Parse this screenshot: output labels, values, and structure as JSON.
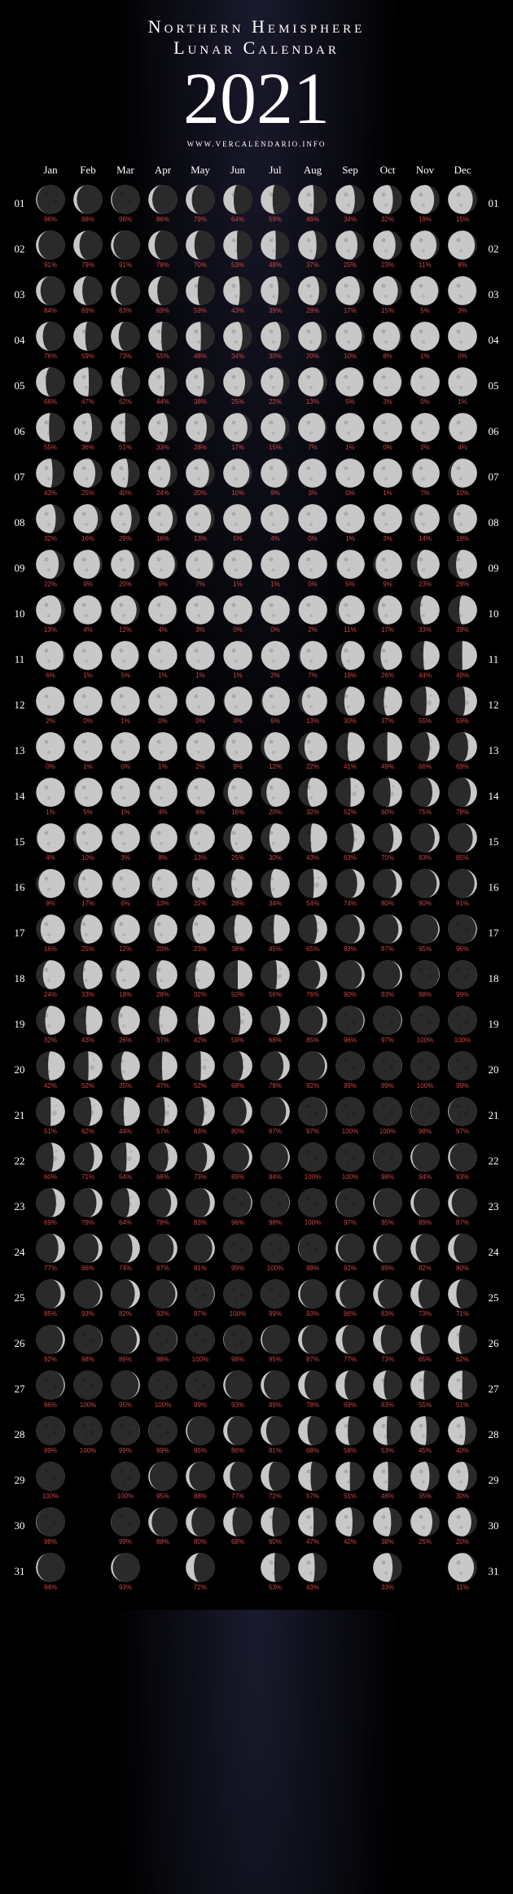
{
  "header": {
    "line1": "Northern Hemisphere",
    "line2": "Lunar Calendar",
    "year": "2021",
    "url": "WWW.VERCALENDARIO.INFO"
  },
  "months": [
    "Jan",
    "Feb",
    "Mar",
    "Apr",
    "May",
    "Jun",
    "Jul",
    "Aug",
    "Sep",
    "Oct",
    "Nov",
    "Dec"
  ],
  "days": [
    "01",
    "02",
    "03",
    "04",
    "05",
    "06",
    "07",
    "08",
    "09",
    "10",
    "11",
    "12",
    "13",
    "14",
    "15",
    "16",
    "17",
    "18",
    "19",
    "20",
    "21",
    "22",
    "23",
    "24",
    "25",
    "26",
    "27",
    "28",
    "29",
    "30",
    "31"
  ],
  "colors": {
    "bg": "#000",
    "text": "#fff",
    "pct": "#cc4444",
    "moonLight": "#c8c8c8",
    "moonDark": "#2a2a2a",
    "moonShade": "#1a1a1a"
  },
  "data": [
    [
      [
        96,
        -1
      ],
      [
        88,
        -1
      ],
      [
        96,
        -1
      ],
      [
        86,
        -1
      ],
      [
        79,
        -1
      ],
      [
        64,
        -1
      ],
      [
        59,
        -1
      ],
      [
        46,
        -1
      ],
      [
        34,
        -1
      ],
      [
        32,
        -1
      ],
      [
        19,
        -1
      ],
      [
        15,
        -1
      ]
    ],
    [
      [
        91,
        -1
      ],
      [
        79,
        -1
      ],
      [
        91,
        -1
      ],
      [
        78,
        -1
      ],
      [
        70,
        -1
      ],
      [
        53,
        -1
      ],
      [
        48,
        -1
      ],
      [
        37,
        -1
      ],
      [
        25,
        -1
      ],
      [
        23,
        -1
      ],
      [
        11,
        -1
      ],
      [
        8,
        -1
      ]
    ],
    [
      [
        84,
        -1
      ],
      [
        69,
        -1
      ],
      [
        83,
        -1
      ],
      [
        69,
        -1
      ],
      [
        59,
        -1
      ],
      [
        43,
        -1
      ],
      [
        39,
        -1
      ],
      [
        28,
        -1
      ],
      [
        17,
        -1
      ],
      [
        15,
        -1
      ],
      [
        5,
        -1
      ],
      [
        3,
        -1
      ]
    ],
    [
      [
        76,
        -1
      ],
      [
        59,
        -1
      ],
      [
        73,
        -1
      ],
      [
        55,
        -1
      ],
      [
        48,
        -1
      ],
      [
        34,
        -1
      ],
      [
        30,
        -1
      ],
      [
        20,
        -1
      ],
      [
        10,
        -1
      ],
      [
        8,
        -1
      ],
      [
        1,
        -1
      ],
      [
        0,
        -1
      ]
    ],
    [
      [
        66,
        -1
      ],
      [
        47,
        -1
      ],
      [
        62,
        -1
      ],
      [
        44,
        -1
      ],
      [
        38,
        -1
      ],
      [
        25,
        -1
      ],
      [
        22,
        -1
      ],
      [
        13,
        -1
      ],
      [
        5,
        -1
      ],
      [
        3,
        -1
      ],
      [
        0,
        1
      ],
      [
        1,
        1
      ]
    ],
    [
      [
        55,
        -1
      ],
      [
        36,
        -1
      ],
      [
        51,
        -1
      ],
      [
        33,
        -1
      ],
      [
        28,
        -1
      ],
      [
        17,
        -1
      ],
      [
        15,
        -1
      ],
      [
        7,
        -1
      ],
      [
        1,
        -1
      ],
      [
        0,
        -1
      ],
      [
        2,
        1
      ],
      [
        4,
        1
      ]
    ],
    [
      [
        43,
        -1
      ],
      [
        25,
        -1
      ],
      [
        40,
        -1
      ],
      [
        24,
        -1
      ],
      [
        20,
        -1
      ],
      [
        10,
        -1
      ],
      [
        9,
        -1
      ],
      [
        3,
        -1
      ],
      [
        0,
        1
      ],
      [
        1,
        1
      ],
      [
        7,
        1
      ],
      [
        10,
        1
      ]
    ],
    [
      [
        32,
        -1
      ],
      [
        16,
        -1
      ],
      [
        29,
        -1
      ],
      [
        16,
        -1
      ],
      [
        13,
        -1
      ],
      [
        5,
        -1
      ],
      [
        4,
        -1
      ],
      [
        0,
        -1
      ],
      [
        1,
        1
      ],
      [
        3,
        1
      ],
      [
        14,
        1
      ],
      [
        19,
        1
      ]
    ],
    [
      [
        22,
        -1
      ],
      [
        9,
        -1
      ],
      [
        20,
        -1
      ],
      [
        9,
        -1
      ],
      [
        7,
        -1
      ],
      [
        1,
        -1
      ],
      [
        1,
        -1
      ],
      [
        0,
        1
      ],
      [
        5,
        1
      ],
      [
        9,
        1
      ],
      [
        23,
        1
      ],
      [
        28,
        1
      ]
    ],
    [
      [
        13,
        -1
      ],
      [
        4,
        -1
      ],
      [
        12,
        -1
      ],
      [
        4,
        -1
      ],
      [
        3,
        -1
      ],
      [
        0,
        1
      ],
      [
        0,
        1
      ],
      [
        2,
        1
      ],
      [
        11,
        1
      ],
      [
        17,
        1
      ],
      [
        33,
        1
      ],
      [
        39,
        1
      ]
    ],
    [
      [
        6,
        -1
      ],
      [
        1,
        -1
      ],
      [
        5,
        -1
      ],
      [
        1,
        -1
      ],
      [
        1,
        -1
      ],
      [
        1,
        1
      ],
      [
        2,
        1
      ],
      [
        7,
        1
      ],
      [
        19,
        1
      ],
      [
        26,
        1
      ],
      [
        44,
        1
      ],
      [
        49,
        1
      ]
    ],
    [
      [
        2,
        -1
      ],
      [
        0,
        -1
      ],
      [
        1,
        -1
      ],
      [
        0,
        1
      ],
      [
        0,
        1
      ],
      [
        4,
        1
      ],
      [
        6,
        1
      ],
      [
        13,
        1
      ],
      [
        30,
        1
      ],
      [
        37,
        1
      ],
      [
        55,
        1
      ],
      [
        59,
        1
      ]
    ],
    [
      [
        0,
        -1
      ],
      [
        1,
        1
      ],
      [
        0,
        1
      ],
      [
        1,
        1
      ],
      [
        2,
        1
      ],
      [
        9,
        1
      ],
      [
        12,
        1
      ],
      [
        22,
        1
      ],
      [
        41,
        1
      ],
      [
        49,
        1
      ],
      [
        66,
        1
      ],
      [
        69,
        1
      ]
    ],
    [
      [
        1,
        1
      ],
      [
        5,
        1
      ],
      [
        1,
        1
      ],
      [
        4,
        1
      ],
      [
        6,
        1
      ],
      [
        16,
        1
      ],
      [
        20,
        1
      ],
      [
        32,
        1
      ],
      [
        52,
        1
      ],
      [
        60,
        1
      ],
      [
        75,
        1
      ],
      [
        78,
        1
      ]
    ],
    [
      [
        4,
        1
      ],
      [
        10,
        1
      ],
      [
        3,
        1
      ],
      [
        8,
        1
      ],
      [
        13,
        1
      ],
      [
        25,
        1
      ],
      [
        30,
        1
      ],
      [
        43,
        1
      ],
      [
        63,
        1
      ],
      [
        70,
        1
      ],
      [
        83,
        1
      ],
      [
        85,
        1
      ]
    ],
    [
      [
        9,
        1
      ],
      [
        17,
        1
      ],
      [
        6,
        1
      ],
      [
        13,
        1
      ],
      [
        22,
        1
      ],
      [
        28,
        1
      ],
      [
        34,
        1
      ],
      [
        54,
        1
      ],
      [
        74,
        1
      ],
      [
        80,
        1
      ],
      [
        90,
        1
      ],
      [
        91,
        1
      ]
    ],
    [
      [
        16,
        1
      ],
      [
        25,
        1
      ],
      [
        12,
        1
      ],
      [
        20,
        1
      ],
      [
        23,
        1
      ],
      [
        38,
        1
      ],
      [
        45,
        1
      ],
      [
        65,
        1
      ],
      [
        83,
        1
      ],
      [
        87,
        1
      ],
      [
        95,
        1
      ],
      [
        96,
        1
      ]
    ],
    [
      [
        24,
        1
      ],
      [
        33,
        1
      ],
      [
        18,
        1
      ],
      [
        28,
        1
      ],
      [
        32,
        1
      ],
      [
        50,
        1
      ],
      [
        56,
        1
      ],
      [
        76,
        1
      ],
      [
        90,
        1
      ],
      [
        93,
        1
      ],
      [
        98,
        1
      ],
      [
        99,
        1
      ]
    ],
    [
      [
        32,
        1
      ],
      [
        43,
        1
      ],
      [
        26,
        1
      ],
      [
        37,
        1
      ],
      [
        42,
        1
      ],
      [
        59,
        1
      ],
      [
        68,
        1
      ],
      [
        85,
        1
      ],
      [
        96,
        1
      ],
      [
        97,
        1
      ],
      [
        100,
        1
      ],
      [
        100,
        1
      ]
    ],
    [
      [
        42,
        1
      ],
      [
        52,
        1
      ],
      [
        35,
        1
      ],
      [
        47,
        1
      ],
      [
        52,
        1
      ],
      [
        68,
        1
      ],
      [
        78,
        1
      ],
      [
        92,
        1
      ],
      [
        99,
        1
      ],
      [
        99,
        1
      ],
      [
        100,
        -1
      ],
      [
        99,
        -1
      ]
    ],
    [
      [
        51,
        1
      ],
      [
        62,
        1
      ],
      [
        44,
        1
      ],
      [
        57,
        1
      ],
      [
        63,
        1
      ],
      [
        80,
        1
      ],
      [
        87,
        1
      ],
      [
        97,
        1
      ],
      [
        100,
        1
      ],
      [
        100,
        -1
      ],
      [
        98,
        -1
      ],
      [
        97,
        -1
      ]
    ],
    [
      [
        60,
        1
      ],
      [
        71,
        1
      ],
      [
        54,
        1
      ],
      [
        68,
        1
      ],
      [
        73,
        1
      ],
      [
        89,
        1
      ],
      [
        94,
        1
      ],
      [
        100,
        1
      ],
      [
        100,
        -1
      ],
      [
        98,
        -1
      ],
      [
        94,
        -1
      ],
      [
        93,
        -1
      ]
    ],
    [
      [
        69,
        1
      ],
      [
        79,
        1
      ],
      [
        64,
        1
      ],
      [
        78,
        1
      ],
      [
        83,
        1
      ],
      [
        96,
        1
      ],
      [
        98,
        1
      ],
      [
        100,
        -1
      ],
      [
        97,
        -1
      ],
      [
        95,
        -1
      ],
      [
        89,
        -1
      ],
      [
        87,
        -1
      ]
    ],
    [
      [
        77,
        1
      ],
      [
        86,
        1
      ],
      [
        74,
        1
      ],
      [
        87,
        1
      ],
      [
        91,
        1
      ],
      [
        99,
        1
      ],
      [
        100,
        1
      ],
      [
        98,
        -1
      ],
      [
        92,
        -1
      ],
      [
        89,
        -1
      ],
      [
        82,
        -1
      ],
      [
        80,
        -1
      ]
    ],
    [
      [
        85,
        1
      ],
      [
        93,
        1
      ],
      [
        82,
        1
      ],
      [
        93,
        1
      ],
      [
        97,
        1
      ],
      [
        100,
        1
      ],
      [
        99,
        -1
      ],
      [
        93,
        -1
      ],
      [
        86,
        -1
      ],
      [
        83,
        -1
      ],
      [
        73,
        -1
      ],
      [
        71,
        -1
      ]
    ],
    [
      [
        92,
        1
      ],
      [
        98,
        1
      ],
      [
        89,
        1
      ],
      [
        98,
        1
      ],
      [
        100,
        1
      ],
      [
        98,
        -1
      ],
      [
        95,
        -1
      ],
      [
        87,
        -1
      ],
      [
        77,
        -1
      ],
      [
        73,
        -1
      ],
      [
        65,
        -1
      ],
      [
        62,
        -1
      ]
    ],
    [
      [
        96,
        1
      ],
      [
        100,
        1
      ],
      [
        95,
        1
      ],
      [
        100,
        1
      ],
      [
        99,
        -1
      ],
      [
        93,
        -1
      ],
      [
        89,
        -1
      ],
      [
        78,
        -1
      ],
      [
        69,
        -1
      ],
      [
        63,
        -1
      ],
      [
        55,
        -1
      ],
      [
        51,
        -1
      ]
    ],
    [
      [
        99,
        1
      ],
      [
        100,
        -1
      ],
      [
        99,
        1
      ],
      [
        99,
        -1
      ],
      [
        95,
        -1
      ],
      [
        86,
        -1
      ],
      [
        81,
        -1
      ],
      [
        68,
        -1
      ],
      [
        58,
        -1
      ],
      [
        53,
        -1
      ],
      [
        45,
        -1
      ],
      [
        40,
        -1
      ]
    ],
    [
      [
        100,
        1
      ],
      null,
      [
        100,
        -1
      ],
      [
        95,
        -1
      ],
      [
        88,
        -1
      ],
      [
        77,
        -1
      ],
      [
        72,
        -1
      ],
      [
        57,
        -1
      ],
      [
        51,
        -1
      ],
      [
        48,
        -1
      ],
      [
        35,
        -1
      ],
      [
        30,
        -1
      ]
    ],
    [
      [
        98,
        -1
      ],
      null,
      [
        99,
        -1
      ],
      [
        88,
        -1
      ],
      [
        80,
        -1
      ],
      [
        68,
        -1
      ],
      [
        60,
        -1
      ],
      [
        47,
        -1
      ],
      [
        42,
        -1
      ],
      [
        38,
        -1
      ],
      [
        25,
        -1
      ],
      [
        20,
        -1
      ]
    ],
    [
      [
        94,
        -1
      ],
      null,
      [
        93,
        -1
      ],
      null,
      [
        72,
        -1
      ],
      null,
      [
        53,
        -1
      ],
      [
        43,
        -1
      ],
      null,
      [
        33,
        -1
      ],
      null,
      [
        11,
        -1
      ]
    ]
  ]
}
